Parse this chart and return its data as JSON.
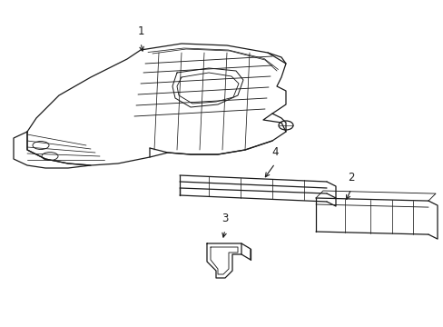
{
  "background_color": "#ffffff",
  "line_color": "#1a1a1a",
  "lw": 0.9,
  "figsize": [
    4.89,
    3.6
  ],
  "dpi": 100,
  "label_fontsize": 8.5
}
